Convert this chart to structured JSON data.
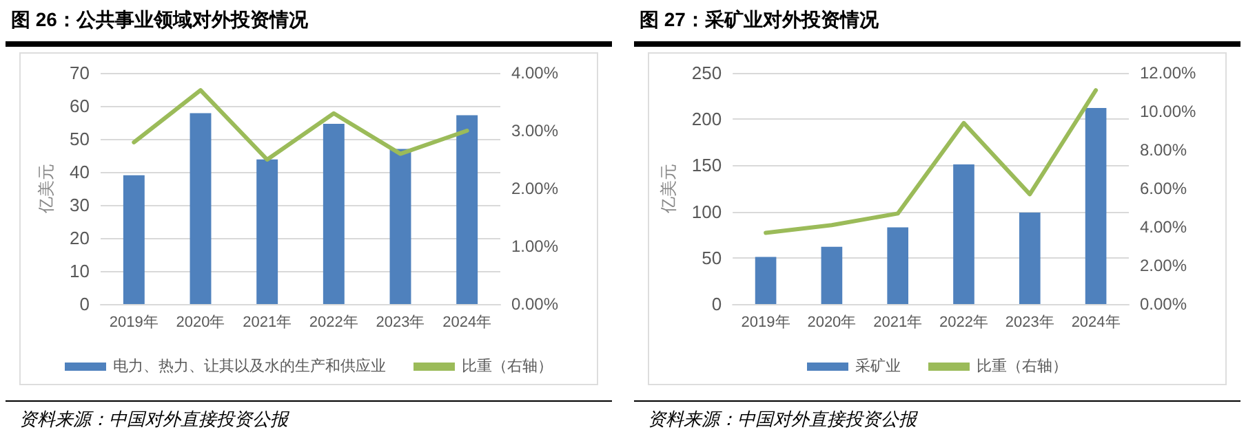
{
  "chart_data": [
    {
      "type": "bar",
      "title": "图 26：公共事业领域对外投资情况",
      "ylabel": "亿美元",
      "categories": [
        "2019年",
        "2020年",
        "2021年",
        "2022年",
        "2023年",
        "2024年"
      ],
      "series": [
        {
          "name": "电力、热力、让其以及水的生产和供应业",
          "color": "#4f81bd",
          "values": [
            39,
            57.8,
            43.8,
            54.6,
            47,
            57.2
          ]
        },
        {
          "type": "line",
          "name": "比重（右轴）",
          "color": "#9bbb59",
          "axis": "y2",
          "values": [
            2.8,
            3.7,
            2.5,
            3.3,
            2.6,
            3.0
          ]
        }
      ],
      "ylim": [
        0,
        70
      ],
      "yticks": [
        0,
        10,
        20,
        30,
        40,
        50,
        60,
        70
      ],
      "y2lim": [
        0,
        4
      ],
      "y2ticks": [
        {
          "value": 0,
          "label": "0.00%"
        },
        {
          "value": 1,
          "label": "1.00%"
        },
        {
          "value": 2,
          "label": "2.00%"
        },
        {
          "value": 3,
          "label": "3.00%"
        },
        {
          "value": 4,
          "label": "4.00%"
        }
      ],
      "grid": "y",
      "legend": "bottom",
      "marker": "none",
      "annotations": [
        "资料来源：中国对外直接投资公报"
      ]
    },
    {
      "type": "bar",
      "title": "图 27：采矿业对外投资情况",
      "ylabel": "亿美元",
      "categories": [
        "2019年",
        "2020年",
        "2021年",
        "2022年",
        "2023年",
        "2024年"
      ],
      "series": [
        {
          "name": "采矿业",
          "color": "#4f81bd",
          "values": [
            51,
            62,
            83,
            151,
            99,
            212
          ]
        },
        {
          "type": "line",
          "name": "比重（右轴）",
          "color": "#9bbb59",
          "axis": "y2",
          "values": [
            3.7,
            4.1,
            4.7,
            9.4,
            5.7,
            11.1
          ]
        }
      ],
      "ylim": [
        0,
        250
      ],
      "yticks": [
        0,
        50,
        100,
        150,
        200,
        250
      ],
      "y2lim": [
        0,
        12
      ],
      "y2ticks": [
        {
          "value": 0,
          "label": "0.00%"
        },
        {
          "value": 2,
          "label": "2.00%"
        },
        {
          "value": 4,
          "label": "4.00%"
        },
        {
          "value": 6,
          "label": "6.00%"
        },
        {
          "value": 8,
          "label": "8.00%"
        },
        {
          "value": 10,
          "label": "10.00%"
        },
        {
          "value": 12,
          "label": "12.00%"
        }
      ],
      "grid": "y",
      "legend": "bottom",
      "marker": "none",
      "annotations": [
        "资料来源：中国对外直接投资公报"
      ]
    }
  ]
}
